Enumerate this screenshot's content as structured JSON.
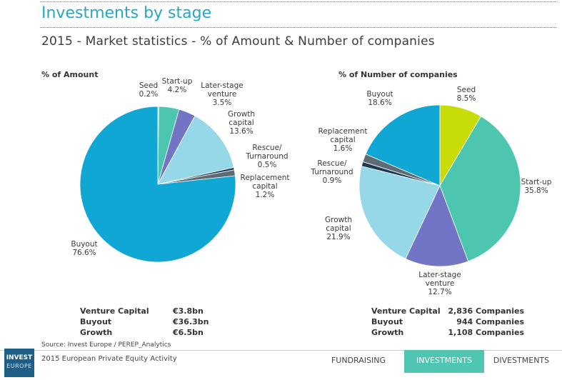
{
  "header": {
    "title": "Investments by stage",
    "subtitle": "2015 - Market statistics - % of Amount & Number of companies"
  },
  "chart_data": [
    {
      "type": "pie",
      "title": "% of Amount",
      "slices": [
        {
          "label": "Seed",
          "value": 0.2,
          "display": "0.2%",
          "color": "#c8dc0a"
        },
        {
          "label": "Start-up",
          "value": 4.2,
          "display": "4.2%",
          "color": "#4dc6b0"
        },
        {
          "label": "Later-stage venture",
          "value": 3.5,
          "display": "3.5%",
          "color": "#7275c6"
        },
        {
          "label": "Growth capital",
          "value": 13.6,
          "display": "13.6%",
          "color": "#96d8e8"
        },
        {
          "label": "Rescue/ Turnaround",
          "value": 0.5,
          "display": "0.5%",
          "color": "#1d3a56"
        },
        {
          "label": "Replacement capital",
          "value": 1.2,
          "display": "1.2%",
          "color": "#5d6b75"
        },
        {
          "label": "Buyout",
          "value": 76.6,
          "display": "76.6%",
          "color": "#11a7d4"
        }
      ]
    },
    {
      "type": "pie",
      "title": "% of Number of companies",
      "slices": [
        {
          "label": "Seed",
          "value": 8.5,
          "display": "8.5%",
          "color": "#c8dc0a"
        },
        {
          "label": "Start-up",
          "value": 35.8,
          "display": "35.8%",
          "color": "#4dc6b0"
        },
        {
          "label": "Later-stage venture",
          "value": 12.7,
          "display": "12.7%",
          "color": "#7275c6"
        },
        {
          "label": "Growth capital",
          "value": 21.9,
          "display": "21.9%",
          "color": "#96d8e8"
        },
        {
          "label": "Rescue/ Turnaround",
          "value": 0.9,
          "display": "0.9%",
          "color": "#1d3a56"
        },
        {
          "label": "Replacement capital",
          "value": 1.6,
          "display": "1.6%",
          "color": "#5d6b75"
        },
        {
          "label": "Buyout",
          "value": 18.6,
          "display": "18.6%",
          "color": "#11a7d4"
        }
      ]
    }
  ],
  "summary_left": [
    {
      "label": "Venture Capital",
      "value": "€3.8bn"
    },
    {
      "label": "Buyout",
      "value": "€36.3bn"
    },
    {
      "label": "Growth",
      "value": "€6.5bn"
    }
  ],
  "summary_right": [
    {
      "label": "Venture Capital",
      "value": "2,836 Companies"
    },
    {
      "label": "Buyout",
      "value": "944 Companies"
    },
    {
      "label": "Growth",
      "value": "1,108 Companies"
    }
  ],
  "footer": {
    "source": "Source: Invest Europe / PEREP_Analytics",
    "report": "2015 European Private Equity Activity",
    "logo_top": "INVEST",
    "logo_bottom": "EUROPE",
    "nav": [
      "FUNDRAISING",
      "INVESTMENTS",
      "DIVESTMENTS"
    ],
    "active_nav": "INVESTMENTS"
  }
}
